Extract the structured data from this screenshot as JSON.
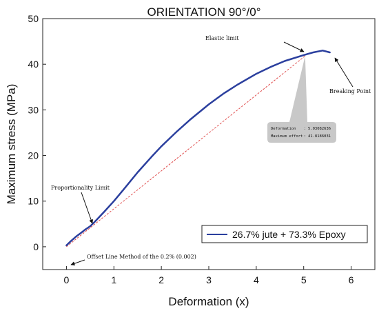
{
  "chart_data": {
    "type": "line",
    "title": "ORIENTATION 90°/0°",
    "xlabel": "Deformation (x)",
    "ylabel": "Maximum stress (MPa)",
    "xlim": [
      -0.5,
      6.5
    ],
    "ylim": [
      -5,
      50
    ],
    "xticks": [
      0,
      1,
      2,
      3,
      4,
      5,
      6
    ],
    "yticks": [
      0,
      10,
      20,
      30,
      40,
      50
    ],
    "grid": false,
    "legend_position": "bottom-right",
    "colors": {
      "series": "#2b3f9e",
      "offset_line": "#e05050",
      "tooltip_bg": "#c8c8c8"
    },
    "series": [
      {
        "name": "26.7% jute + 73.3% Epoxy",
        "x": [
          0,
          0.1,
          0.2,
          0.3,
          0.4,
          0.5,
          0.6,
          0.8,
          1.0,
          1.2,
          1.5,
          1.8,
          2.0,
          2.3,
          2.6,
          3.0,
          3.3,
          3.6,
          4.0,
          4.3,
          4.6,
          5.0,
          5.2,
          5.4,
          5.55
        ],
        "y": [
          0.3,
          1.3,
          2.2,
          3.0,
          3.8,
          4.5,
          5.5,
          7.7,
          10.0,
          12.5,
          16.3,
          19.8,
          22.0,
          25.0,
          27.8,
          31.2,
          33.5,
          35.5,
          37.9,
          39.4,
          40.7,
          42.0,
          42.6,
          43.0,
          42.6
        ]
      }
    ],
    "reference_line": {
      "x": [
        0,
        5.03
      ],
      "y": [
        0,
        41.82
      ]
    },
    "annotations": {
      "elastic_limit": "Elastic limit",
      "breaking_point": "Breaking Point",
      "proportionality_limit": "Proportionality Limit",
      "offset_line": "Offset Line Method of the 0.2% (0.002)"
    },
    "tooltip": {
      "deformation_label": "Deformation",
      "deformation_value": "5.03082636",
      "effort_label": "Maximum effort",
      "effort_value": "41.8186031",
      "x": 5.03,
      "y": 41.82
    }
  }
}
